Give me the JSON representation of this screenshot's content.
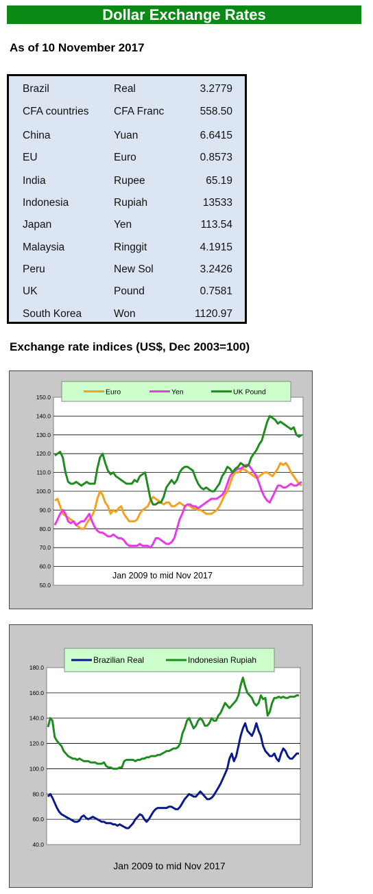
{
  "header": {
    "title": "Dollar Exchange Rates"
  },
  "as_of": "As of 10 November 2017",
  "rates": [
    {
      "country": "Brazil",
      "currency": "Real",
      "rate": "3.2779"
    },
    {
      "country": "CFA countries",
      "currency": "CFA Franc",
      "rate": "558.50"
    },
    {
      "country": "China",
      "currency": "Yuan",
      "rate": "6.6415"
    },
    {
      "country": "EU",
      "currency": "Euro",
      "rate": "0.8573"
    },
    {
      "country": "India",
      "currency": "Rupee",
      "rate": "65.19"
    },
    {
      "country": "Indonesia",
      "currency": "Rupiah",
      "rate": "13533"
    },
    {
      "country": "Japan",
      "currency": "Yen",
      "rate": "113.54"
    },
    {
      "country": "Malaysia",
      "currency": "Ringgit",
      "rate": "4.1915"
    },
    {
      "country": "Peru",
      "currency": "New Sol",
      "rate": "3.2426"
    },
    {
      "country": "UK",
      "currency": "Pound",
      "rate": "0.7581"
    },
    {
      "country": "South Korea",
      "currency": "Won",
      "rate": "1120.97"
    }
  ],
  "indices_title": "Exchange rate indices (US$, Dec 2003=100)",
  "chart_data": [
    {
      "type": "line",
      "xlabel": "Jan 2009  to mid Nov 2017",
      "ylim": [
        50,
        150
      ],
      "yticks": [
        "150.0",
        "140.0",
        "130.0",
        "120.0",
        "110.0",
        "100.0",
        "90.0",
        "80.0",
        "70.0",
        "60.0",
        "50.0"
      ],
      "grid": true,
      "legend": "top",
      "series": [
        {
          "name": "Euro",
          "color": "#f5a11c",
          "values": [
            95,
            96,
            92,
            88,
            87,
            86,
            85,
            84,
            82,
            81,
            80,
            80,
            83,
            85,
            87,
            90,
            96,
            100,
            98,
            94,
            92,
            88,
            90,
            89,
            91,
            92,
            88,
            86,
            84,
            84,
            84,
            85,
            88,
            90,
            91,
            92,
            95,
            97,
            96,
            95,
            94,
            93,
            94,
            94,
            92,
            92,
            93,
            94,
            93,
            92,
            93,
            92,
            91,
            91,
            90,
            90,
            89,
            88,
            88,
            88,
            89,
            90,
            92,
            95,
            98,
            100,
            104,
            108,
            110,
            110,
            111,
            112,
            111,
            110,
            109,
            108,
            107,
            108,
            109,
            110,
            110,
            109,
            108,
            110,
            112,
            115,
            114,
            115,
            113,
            110,
            108,
            106,
            104,
            103
          ]
        },
        {
          "name": "Yen",
          "color": "#e83ae8",
          "values": [
            82,
            85,
            88,
            90,
            88,
            84,
            83,
            84,
            82,
            83,
            84,
            84,
            86,
            88,
            84,
            81,
            79,
            78,
            78,
            77,
            76,
            76,
            77,
            76,
            75,
            75,
            74,
            72,
            71,
            71,
            71,
            71,
            72,
            71,
            71,
            71,
            70,
            72,
            75,
            75,
            74,
            73,
            72,
            72,
            73,
            75,
            80,
            85,
            88,
            92,
            93,
            93,
            92,
            92,
            91,
            92,
            93,
            94,
            95,
            96,
            96,
            96,
            97,
            98,
            100,
            104,
            108,
            110,
            111,
            112,
            112,
            113,
            114,
            114,
            112,
            110,
            108,
            104,
            100,
            97,
            95,
            94,
            97,
            100,
            103,
            103,
            102,
            102,
            103,
            104,
            103,
            103,
            104,
            105
          ]
        },
        {
          "name": "UK Pound",
          "color": "#1f8c1f",
          "values": [
            119,
            120,
            121,
            118,
            110,
            105,
            104,
            104,
            105,
            104,
            103,
            104,
            105,
            104,
            104,
            104,
            112,
            118,
            120,
            115,
            111,
            109,
            110,
            108,
            107,
            106,
            105,
            104,
            104,
            104,
            106,
            105,
            108,
            109,
            110,
            103,
            96,
            93,
            93,
            94,
            94,
            97,
            102,
            104,
            106,
            104,
            106,
            110,
            112,
            113,
            113,
            112,
            111,
            107,
            104,
            102,
            101,
            102,
            101,
            100,
            100,
            102,
            104,
            108,
            110,
            113,
            112,
            110,
            112,
            113,
            115,
            114,
            113,
            114,
            118,
            120,
            122,
            125,
            127,
            132,
            137,
            140,
            139,
            138,
            136,
            137,
            136,
            135,
            134,
            133,
            134,
            130,
            129,
            130
          ]
        }
      ]
    },
    {
      "type": "line",
      "xlabel": "Jan 2009 to mid Nov 2017",
      "ylim": [
        40,
        180
      ],
      "yticks": [
        "180.0",
        "160.0",
        "140.0",
        "120.0",
        "100.0",
        "80.0",
        "60.0",
        "40.0"
      ],
      "grid": true,
      "legend": "top",
      "series": [
        {
          "name": "Brazilian Real",
          "color": "#0a1a8c",
          "values": [
            78,
            80,
            77,
            73,
            69,
            66,
            64,
            63,
            62,
            61,
            60,
            59,
            58,
            58,
            59,
            62,
            63,
            61,
            60,
            61,
            62,
            61,
            60,
            59,
            58,
            58,
            57,
            57,
            57,
            56,
            56,
            55,
            56,
            55,
            54,
            53,
            53,
            55,
            57,
            60,
            62,
            64,
            63,
            60,
            58,
            60,
            63,
            66,
            68,
            69,
            69,
            69,
            69,
            69,
            70,
            70,
            69,
            68,
            68,
            70,
            73,
            76,
            78,
            80,
            79,
            78,
            78,
            80,
            82,
            80,
            78,
            76,
            76,
            77,
            79,
            82,
            85,
            88,
            92,
            96,
            100,
            108,
            112,
            106,
            110,
            118,
            126,
            132,
            136,
            130,
            128,
            126,
            130,
            136,
            130,
            126,
            118,
            114,
            112,
            110,
            110,
            112,
            108,
            106,
            112,
            116,
            114,
            110,
            108,
            108,
            110,
            112,
            112
          ]
        },
        {
          "name": "Indonesian Rupiah",
          "color": "#1f8c1f",
          "values": [
            133,
            140,
            138,
            125,
            122,
            120,
            118,
            114,
            112,
            110,
            109,
            108,
            108,
            107,
            108,
            107,
            106,
            106,
            106,
            105,
            105,
            105,
            104,
            104,
            104,
            105,
            102,
            101,
            101,
            100,
            100,
            100,
            101,
            101,
            106,
            107,
            107,
            107,
            107,
            106,
            107,
            107,
            108,
            108,
            109,
            109,
            110,
            110,
            110,
            111,
            111,
            112,
            113,
            114,
            114,
            115,
            116,
            116,
            117,
            120,
            128,
            132,
            138,
            140,
            136,
            132,
            134,
            138,
            140,
            138,
            134,
            134,
            136,
            140,
            138,
            138,
            142,
            144,
            148,
            152,
            150,
            148,
            150,
            152,
            154,
            158,
            166,
            172,
            165,
            160,
            158,
            156,
            152,
            150,
            152,
            158,
            155,
            156,
            142,
            145,
            152,
            156,
            156,
            157,
            156,
            157,
            156,
            156,
            157,
            157,
            157,
            158,
            158
          ]
        }
      ]
    }
  ]
}
